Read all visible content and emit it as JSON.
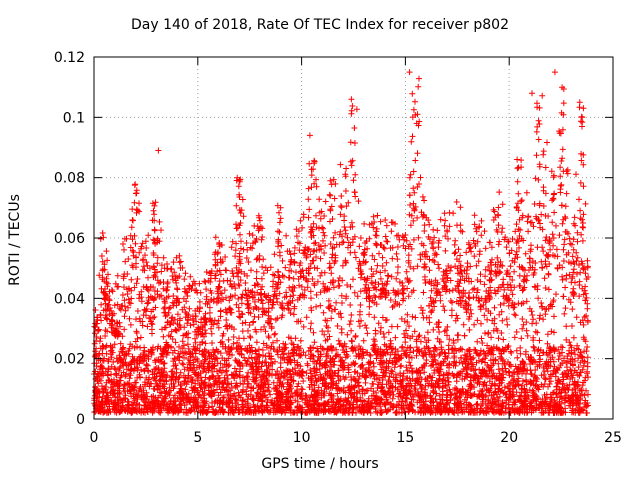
{
  "chart_data": {
    "type": "scatter",
    "title": "Day 140 of 2018, Rate Of TEC Index for receiver p802",
    "xlabel": "GPS time / hours",
    "ylabel": "ROTI / TECUs",
    "xlim": [
      0,
      25
    ],
    "ylim": [
      0,
      0.12
    ],
    "xticks": [
      0,
      5,
      10,
      15,
      20,
      25
    ],
    "xtick_labels": [
      "0",
      "5",
      "10",
      "15",
      "20",
      "25"
    ],
    "yticks": [
      0,
      0.02,
      0.04,
      0.06,
      0.08,
      0.1,
      0.12
    ],
    "ytick_labels": [
      "0",
      "0.02",
      "0.04",
      "0.06",
      "0.08",
      "0.1",
      "0.12"
    ],
    "grid": true,
    "marker": "+",
    "color": "#ff0000",
    "series": [
      {
        "name": "ROTI",
        "x_range": [
          0,
          23.8
        ],
        "density_note": "dense cloud of per-satellite samples",
        "envelope": {
          "x": [
            0,
            0.5,
            1,
            1.5,
            2,
            2.5,
            3,
            3.5,
            4,
            4.5,
            5,
            5.5,
            6,
            6.5,
            7,
            7.5,
            8,
            8.5,
            9,
            9.5,
            10,
            10.5,
            11,
            11.5,
            12,
            12.5,
            13,
            13.5,
            14,
            14.5,
            15,
            15.5,
            16,
            16.5,
            17,
            17.5,
            18,
            18.5,
            19,
            19.5,
            20,
            20.5,
            21,
            21.5,
            22,
            22.5,
            23,
            23.5,
            23.8
          ],
          "ymax": [
            0.035,
            0.063,
            0.045,
            0.06,
            0.078,
            0.062,
            0.072,
            0.052,
            0.055,
            0.053,
            0.045,
            0.05,
            0.062,
            0.05,
            0.08,
            0.062,
            0.068,
            0.05,
            0.071,
            0.06,
            0.07,
            0.094,
            0.07,
            0.08,
            0.085,
            0.106,
            0.065,
            0.068,
            0.067,
            0.067,
            0.065,
            0.115,
            0.068,
            0.065,
            0.07,
            0.075,
            0.06,
            0.07,
            0.062,
            0.078,
            0.06,
            0.09,
            0.07,
            0.108,
            0.085,
            0.115,
            0.065,
            0.104,
            0.052
          ]
        },
        "outliers": [
          {
            "x": 3.1,
            "y": 0.089
          },
          {
            "x": 10.4,
            "y": 0.094
          },
          {
            "x": 12.4,
            "y": 0.106
          },
          {
            "x": 15.2,
            "y": 0.115
          },
          {
            "x": 21.1,
            "y": 0.108
          },
          {
            "x": 22.2,
            "y": 0.115
          },
          {
            "x": 23.4,
            "y": 0.105
          }
        ]
      }
    ]
  }
}
